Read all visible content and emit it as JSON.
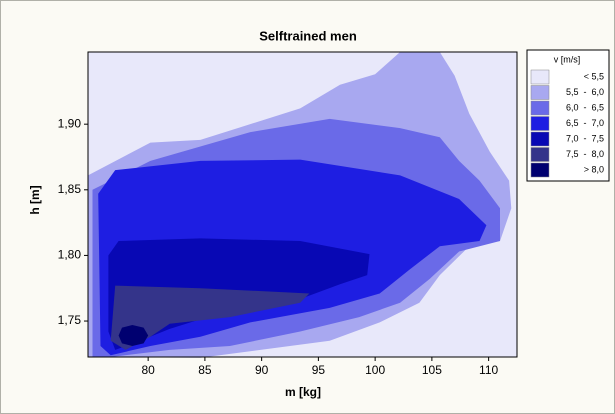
{
  "chart_data": {
    "type": "contour",
    "title": "Selftrained men",
    "x_label": "m [kg]",
    "y_label": "h [m]",
    "xlim": [
      74.7,
      112.5
    ],
    "ylim": [
      1.7226,
      1.955
    ],
    "xticks": [
      80,
      85,
      90,
      95,
      100,
      105,
      110
    ],
    "yticks": [
      {
        "value": 1.75,
        "label": "1,75"
      },
      {
        "value": 1.8,
        "label": "1,80"
      },
      {
        "value": 1.85,
        "label": "1,85"
      },
      {
        "value": 1.9,
        "label": "1,90"
      }
    ],
    "legend_title": "v [m/s]",
    "legend_position": "right",
    "legend": [
      {
        "label": "< 5,5",
        "color": "#e8e8fa"
      },
      {
        "label": "5,5  -  6,0",
        "color": "#a8a8f0"
      },
      {
        "label": "6,0  -  6,5",
        "color": "#6a6ae8"
      },
      {
        "label": "6,5  -  7,0",
        "color": "#1e1ee2"
      },
      {
        "label": "7,0  -  7,5",
        "color": "#0808b4"
      },
      {
        "label": "7,5  -  8,0",
        "color": "#34348a"
      },
      {
        "label": "> 8,0",
        "color": "#000070"
      }
    ],
    "regions": [
      {
        "level": 1,
        "points": [
          [
            74.7,
            1.861
          ],
          [
            80.2,
            1.886
          ],
          [
            84.6,
            1.888
          ],
          [
            93.4,
            1.912
          ],
          [
            96.9,
            1.93
          ],
          [
            100.0,
            1.938
          ],
          [
            102.2,
            1.955
          ],
          [
            105.7,
            1.955
          ],
          [
            107.0,
            1.937
          ],
          [
            108.3,
            1.908
          ],
          [
            110.1,
            1.879
          ],
          [
            111.8,
            1.857
          ],
          [
            112.0,
            1.836
          ],
          [
            111.0,
            1.811
          ],
          [
            108.3,
            1.807
          ],
          [
            105.7,
            1.785
          ],
          [
            103.9,
            1.764
          ],
          [
            100.4,
            1.749
          ],
          [
            96.0,
            1.735
          ],
          [
            89.9,
            1.728
          ],
          [
            84.6,
            1.722
          ],
          [
            74.7,
            1.7226
          ]
        ]
      },
      {
        "level": 2,
        "points": [
          [
            75.1,
            1.85
          ],
          [
            80.2,
            1.872
          ],
          [
            89.0,
            1.894
          ],
          [
            96.0,
            1.904
          ],
          [
            102.2,
            1.897
          ],
          [
            105.7,
            1.89
          ],
          [
            107.4,
            1.872
          ],
          [
            109.2,
            1.857
          ],
          [
            111.0,
            1.836
          ],
          [
            111.0,
            1.811
          ],
          [
            107.4,
            1.803
          ],
          [
            104.8,
            1.782
          ],
          [
            102.2,
            1.764
          ],
          [
            98.6,
            1.753
          ],
          [
            93.4,
            1.742
          ],
          [
            87.2,
            1.731
          ],
          [
            81.9,
            1.728
          ],
          [
            76.7,
            1.7226
          ],
          [
            75.1,
            1.7226
          ]
        ]
      },
      {
        "level": 3,
        "points": [
          [
            75.6,
            1.847
          ],
          [
            77.1,
            1.865
          ],
          [
            84.6,
            1.872
          ],
          [
            93.4,
            1.873
          ],
          [
            102.2,
            1.861
          ],
          [
            107.4,
            1.843
          ],
          [
            109.8,
            1.823
          ],
          [
            109.2,
            1.811
          ],
          [
            105.7,
            1.807
          ],
          [
            103.0,
            1.789
          ],
          [
            100.4,
            1.771
          ],
          [
            96.0,
            1.76
          ],
          [
            89.0,
            1.749
          ],
          [
            84.6,
            1.738
          ],
          [
            80.2,
            1.731
          ],
          [
            76.7,
            1.724
          ],
          [
            75.8,
            1.731
          ]
        ]
      },
      {
        "level": 4,
        "points": [
          [
            76.5,
            1.8
          ],
          [
            77.4,
            1.811
          ],
          [
            84.6,
            1.813
          ],
          [
            93.4,
            1.811
          ],
          [
            99.5,
            1.801
          ],
          [
            99.3,
            1.785
          ],
          [
            96.9,
            1.778
          ],
          [
            92.5,
            1.764
          ],
          [
            86.3,
            1.756
          ],
          [
            81.9,
            1.744
          ],
          [
            79.3,
            1.735
          ],
          [
            77.1,
            1.728
          ],
          [
            76.5,
            1.742
          ]
        ]
      },
      {
        "level": 5,
        "points": [
          [
            76.7,
            1.735
          ],
          [
            77.1,
            1.777
          ],
          [
            84.6,
            1.775
          ],
          [
            94.2,
            1.771
          ],
          [
            93.4,
            1.764
          ],
          [
            87.2,
            1.753
          ],
          [
            81.9,
            1.748
          ],
          [
            80.2,
            1.738
          ],
          [
            78.0,
            1.728
          ]
        ]
      },
      {
        "level": 6,
        "points": [
          [
            77.4,
            1.739
          ],
          [
            77.7,
            1.745
          ],
          [
            78.6,
            1.747
          ],
          [
            79.6,
            1.745
          ],
          [
            80.0,
            1.739
          ],
          [
            79.6,
            1.733
          ],
          [
            78.6,
            1.731
          ],
          [
            77.7,
            1.733
          ]
        ]
      }
    ]
  }
}
